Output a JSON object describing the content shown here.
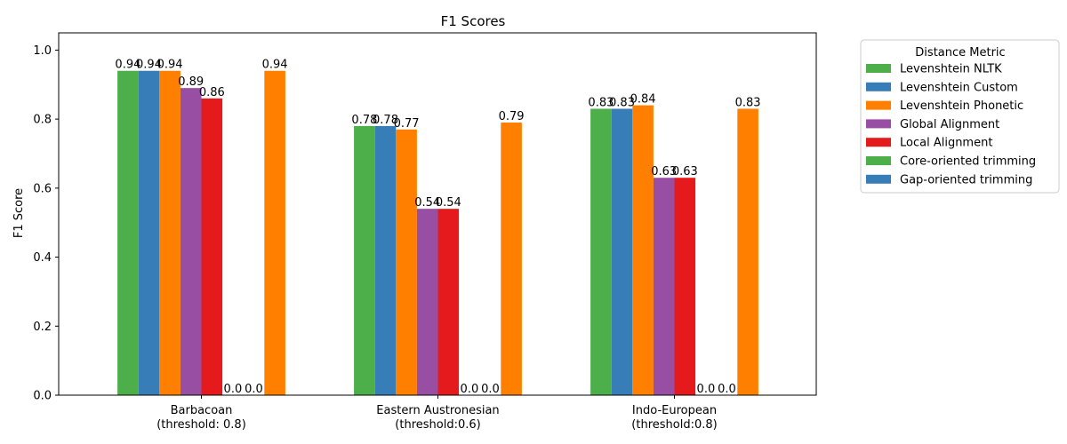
{
  "chart_data": {
    "type": "bar",
    "title": "F1 Scores",
    "xlabel": "",
    "ylabel": "F1 Score",
    "ylim": [
      0,
      1.05
    ],
    "yticks": [
      0.0,
      0.2,
      0.4,
      0.6,
      0.8,
      1.0
    ],
    "ytick_labels": [
      "0.0",
      "0.2",
      "0.4",
      "0.6",
      "0.8",
      "1.0"
    ],
    "categories": [
      [
        "Barbacoan",
        "(threshold: 0.8)"
      ],
      [
        "Eastern Austronesian",
        "(threshold:0.6)"
      ],
      [
        "Indo-European",
        "(threshold:0.8)"
      ]
    ],
    "legend": {
      "title": "Distance Metric",
      "placement": "outside-right-top"
    },
    "grid": false,
    "series": [
      {
        "name": "Levenshtein NLTK",
        "color": "#4daf4a",
        "values": [
          0.94,
          0.78,
          0.83
        ],
        "labels": [
          "0.94",
          "0.78",
          "0.83"
        ]
      },
      {
        "name": "Levenshtein Custom",
        "color": "#377eb8",
        "values": [
          0.94,
          0.78,
          0.83
        ],
        "labels": [
          "0.94",
          "0.78",
          "0.83"
        ]
      },
      {
        "name": "Levenshtein Phonetic",
        "color": "#ff7f00",
        "values": [
          0.94,
          0.77,
          0.84
        ],
        "labels": [
          "0.94",
          "0.77",
          "0.84"
        ]
      },
      {
        "name": "Global Alignment",
        "color": "#984ea3",
        "values": [
          0.89,
          0.54,
          0.63
        ],
        "labels": [
          "0.89",
          "0.54",
          "0.63"
        ]
      },
      {
        "name": "Local Alignment",
        "color": "#e41a1c",
        "values": [
          0.86,
          0.54,
          0.63
        ],
        "labels": [
          "0.86",
          "0.54",
          "0.63"
        ]
      },
      {
        "name": "Core-oriented trimming",
        "color": "#4daf4a",
        "values": [
          0.0,
          0.0,
          0.0
        ],
        "labels": [
          "0.0",
          "0.0",
          "0.0"
        ]
      },
      {
        "name": "Gap-oriented trimming",
        "color": "#377eb8",
        "values": [
          0.0,
          0.0,
          0.0
        ],
        "labels": [
          "0.0",
          "0.0",
          "0.0"
        ]
      },
      {
        "name": "",
        "color": "#ff7f00",
        "values": [
          0.94,
          0.79,
          0.83
        ],
        "labels": [
          "0.94",
          "0.79",
          "0.83"
        ]
      }
    ]
  }
}
